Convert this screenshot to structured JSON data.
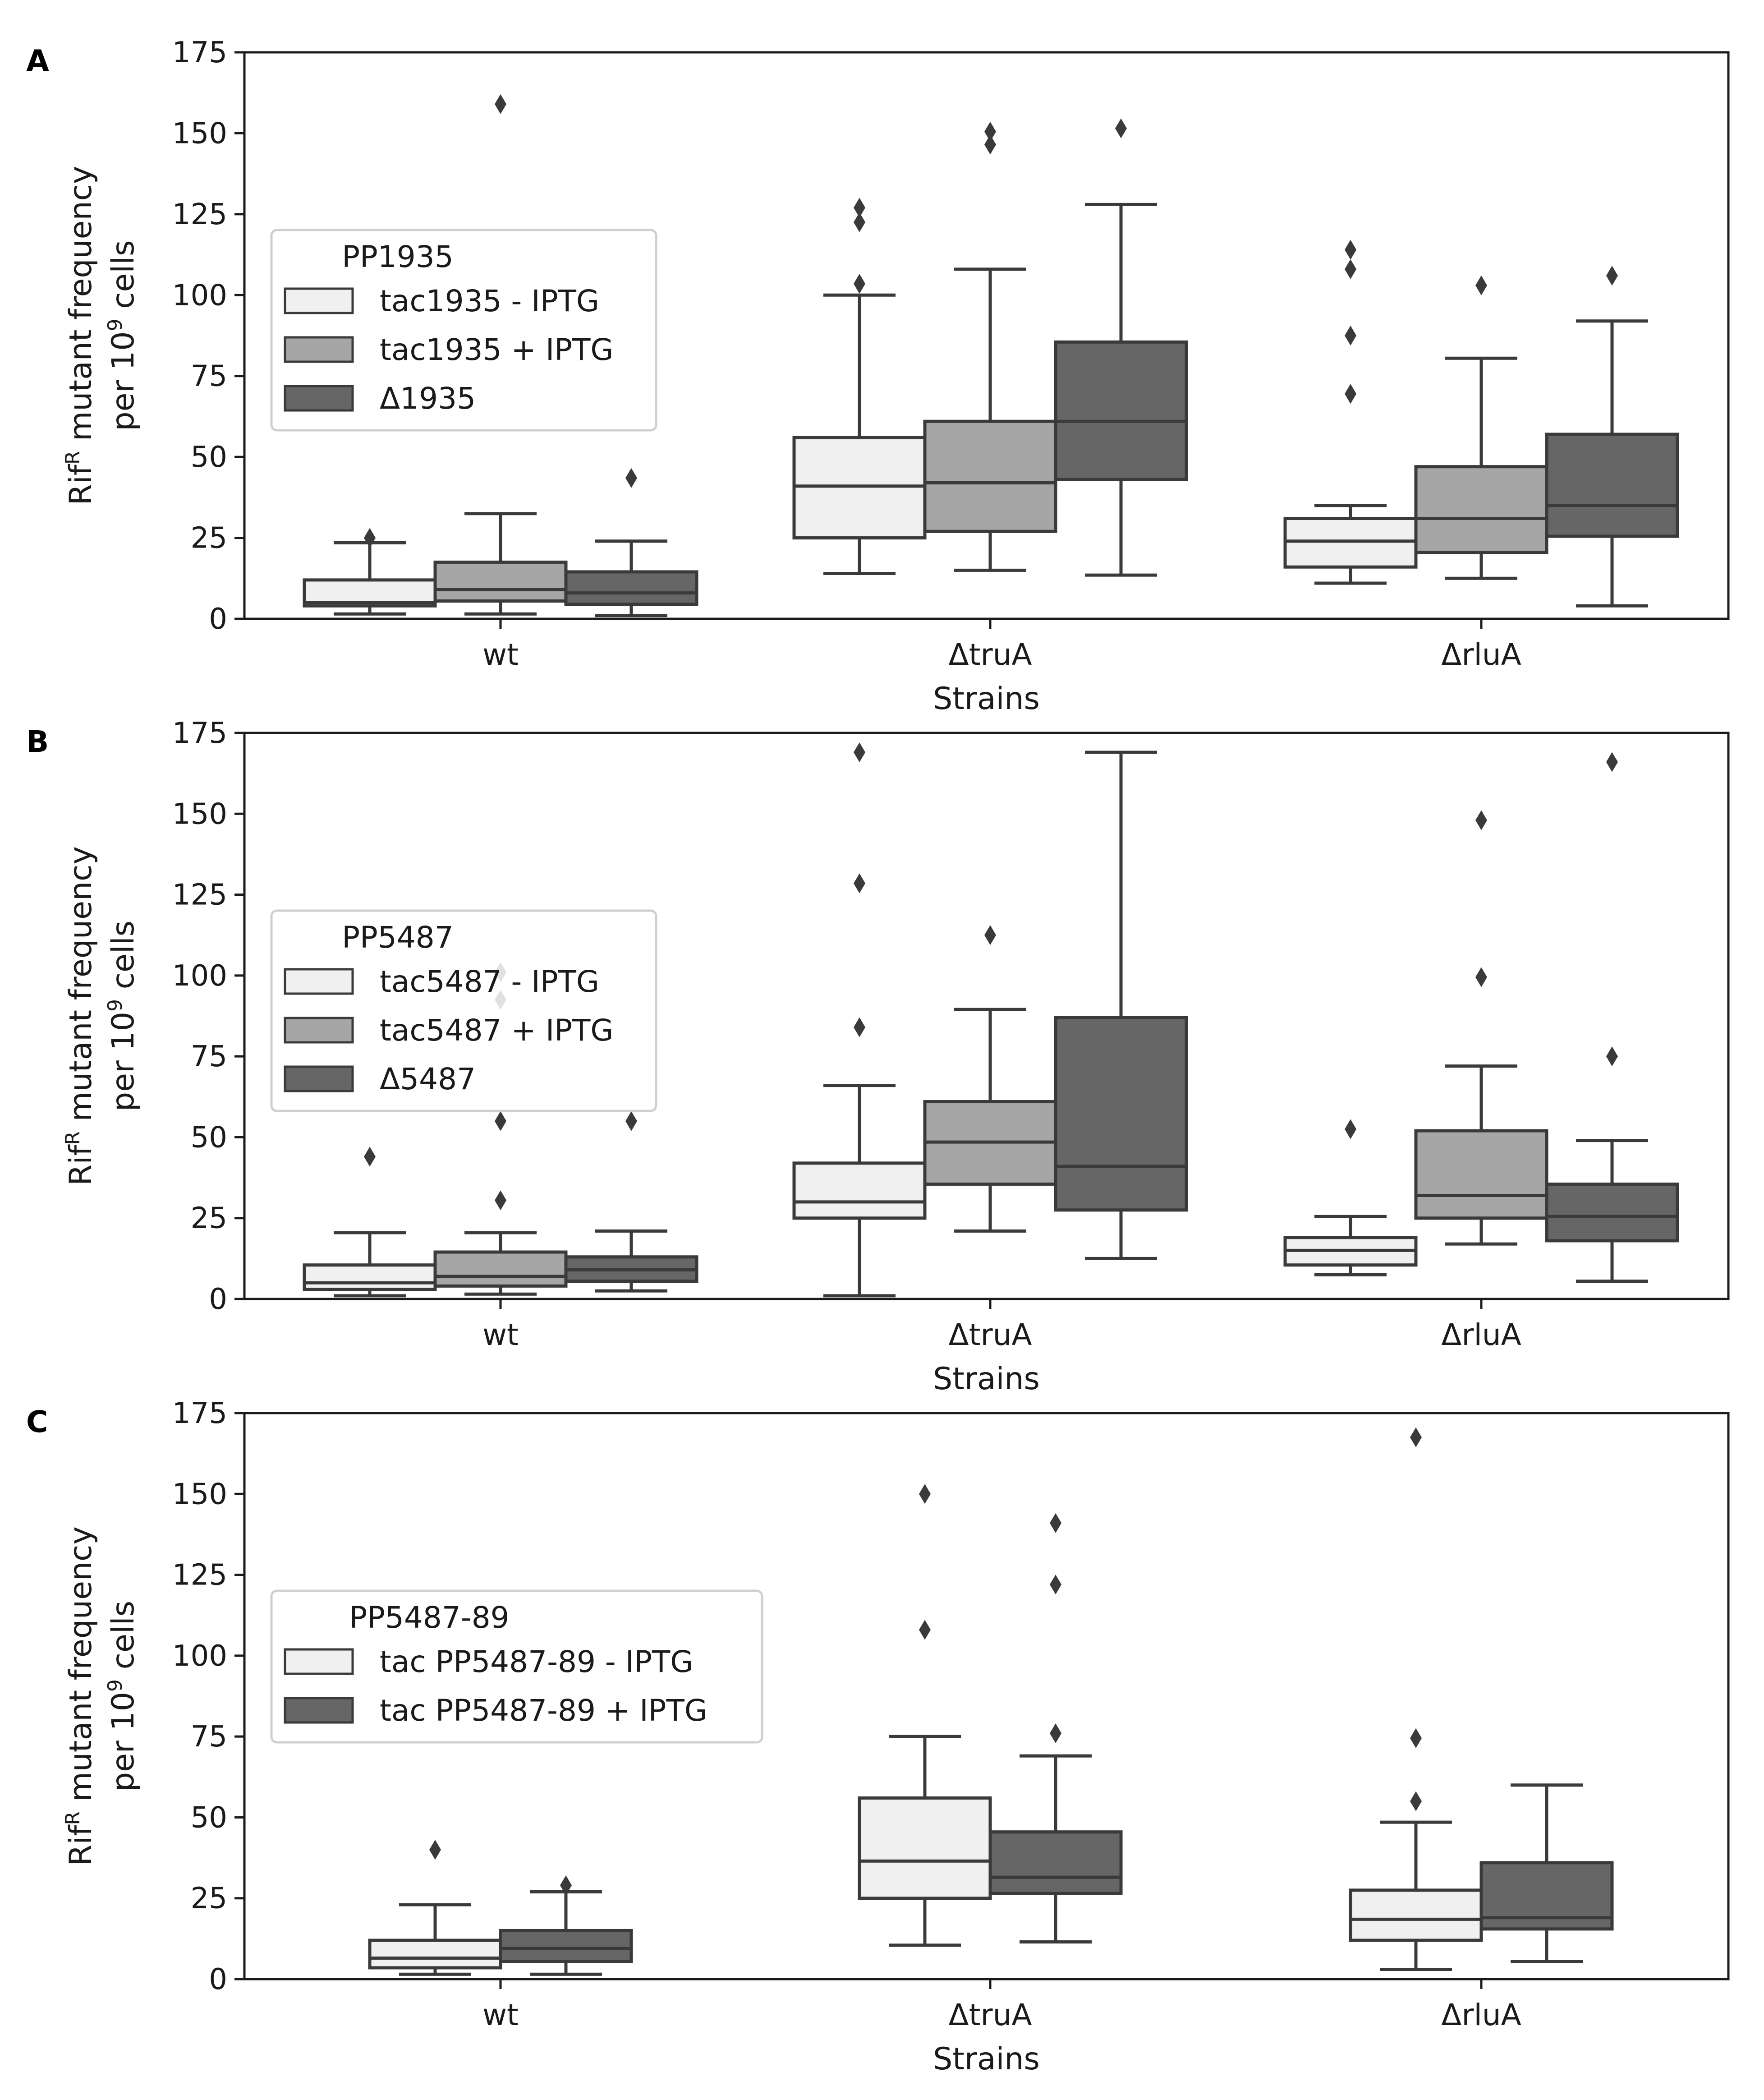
{
  "colors": {
    "light": "#f0f0f0",
    "mid": "#a6a6a6",
    "dark": "#666666",
    "line": "#3a3a3a",
    "frame": "#1a1a1a"
  },
  "chart_data": [
    {
      "type": "box",
      "panel_label": "A",
      "xlabel": "Strains",
      "ylabel": "RifR mutant frequency per 109 cells",
      "ylabel_parts": {
        "line1_pre": "Rif",
        "line1_sup": "R",
        "line1_post": " mutant frequency",
        "line2_pre": "per 10",
        "line2_sup": "9",
        "line2_post": " cells"
      },
      "ylim": [
        0,
        175
      ],
      "yticks": [
        "0",
        "25",
        "50",
        "75",
        "100",
        "125",
        "150",
        "175"
      ],
      "categories": [
        "wt",
        "ΔtruA",
        "ΔrluA"
      ],
      "legend": {
        "title": "PP1935",
        "placement": "upper-left",
        "entries": [
          "tac1935 - IPTG",
          "tac1935 + IPTG",
          "Δ1935"
        ]
      },
      "series": [
        {
          "name": "tac1935 - IPTG",
          "color": "light",
          "boxes": [
            {
              "whisker_low": 1.5,
              "q1": 4,
              "median": 5,
              "q3": 12,
              "whisker_high": 23.5,
              "outliers": [
                25
              ]
            },
            {
              "whisker_low": 14,
              "q1": 25,
              "median": 41,
              "q3": 56,
              "whisker_high": 100,
              "outliers": [
                103.5,
                122.5,
                127
              ]
            },
            {
              "whisker_low": 11,
              "q1": 16,
              "median": 24,
              "q3": 31,
              "whisker_high": 35,
              "outliers": [
                69.5,
                87.5,
                108,
                114
              ]
            }
          ]
        },
        {
          "name": "tac1935 + IPTG",
          "color": "mid",
          "boxes": [
            {
              "whisker_low": 1.5,
              "q1": 5.5,
              "median": 9,
              "q3": 17.5,
              "whisker_high": 32.5,
              "outliers": [
                159
              ]
            },
            {
              "whisker_low": 15,
              "q1": 27,
              "median": 42,
              "q3": 61,
              "whisker_high": 108,
              "outliers": [
                146.5,
                150.5
              ]
            },
            {
              "whisker_low": 12.5,
              "q1": 20.5,
              "median": 31,
              "q3": 47,
              "whisker_high": 80.5,
              "outliers": [
                103
              ]
            }
          ]
        },
        {
          "name": "Δ1935",
          "color": "dark",
          "boxes": [
            {
              "whisker_low": 1,
              "q1": 4.5,
              "median": 8,
              "q3": 14.5,
              "whisker_high": 24,
              "outliers": [
                43.5
              ]
            },
            {
              "whisker_low": 13.5,
              "q1": 43,
              "median": 61,
              "q3": 85.5,
              "whisker_high": 128,
              "outliers": [
                151.5
              ]
            },
            {
              "whisker_low": 4,
              "q1": 25.5,
              "median": 35,
              "q3": 57,
              "whisker_high": 92,
              "outliers": [
                106
              ]
            }
          ]
        }
      ]
    },
    {
      "type": "box",
      "panel_label": "B",
      "xlabel": "Strains",
      "ylabel": "RifR mutant frequency per 109 cells",
      "ylabel_parts": {
        "line1_pre": "Rif",
        "line1_sup": "R",
        "line1_post": " mutant frequency",
        "line2_pre": "per 10",
        "line2_sup": "9",
        "line2_post": " cells"
      },
      "ylim": [
        0,
        175
      ],
      "yticks": [
        "0",
        "25",
        "50",
        "75",
        "100",
        "125",
        "150",
        "175"
      ],
      "categories": [
        "wt",
        "ΔtruA",
        "ΔrluA"
      ],
      "legend": {
        "title": "PP5487",
        "placement": "upper-left",
        "entries": [
          "tac5487 - IPTG",
          "tac5487 + IPTG",
          "Δ5487"
        ]
      },
      "series": [
        {
          "name": "tac5487 - IPTG",
          "color": "light",
          "boxes": [
            {
              "whisker_low": 1,
              "q1": 3,
              "median": 5,
              "q3": 10.5,
              "whisker_high": 20.5,
              "outliers": [
                44
              ]
            },
            {
              "whisker_low": 1,
              "q1": 25,
              "median": 30,
              "q3": 42,
              "whisker_high": 66,
              "outliers": [
                84,
                128.5,
                169
              ]
            },
            {
              "whisker_low": 7.5,
              "q1": 10.5,
              "median": 15,
              "q3": 19,
              "whisker_high": 25.5,
              "outliers": [
                52.5
              ]
            }
          ]
        },
        {
          "name": "tac5487 + IPTG",
          "color": "mid",
          "boxes": [
            {
              "whisker_low": 1.5,
              "q1": 4,
              "median": 7,
              "q3": 14.5,
              "whisker_high": 20.5,
              "outliers": [
                30.5,
                55,
                92.5,
                101
              ]
            },
            {
              "whisker_low": 21,
              "q1": 35.5,
              "median": 48.5,
              "q3": 61,
              "whisker_high": 89.5,
              "outliers": [
                112.5
              ]
            },
            {
              "whisker_low": 17,
              "q1": 25,
              "median": 32,
              "q3": 52,
              "whisker_high": 72,
              "outliers": [
                99.5,
                148
              ]
            }
          ]
        },
        {
          "name": "Δ5487",
          "color": "dark",
          "boxes": [
            {
              "whisker_low": 2.5,
              "q1": 5.5,
              "median": 9,
              "q3": 13,
              "whisker_high": 21,
              "outliers": [
                55
              ]
            },
            {
              "whisker_low": 12.5,
              "q1": 27.5,
              "median": 41,
              "q3": 87,
              "whisker_high": 169,
              "outliers": []
            },
            {
              "whisker_low": 5.5,
              "q1": 18,
              "median": 25.5,
              "q3": 35.5,
              "whisker_high": 49,
              "outliers": [
                75,
                166
              ]
            }
          ]
        }
      ]
    },
    {
      "type": "box",
      "panel_label": "C",
      "xlabel": "Strains",
      "ylabel": "RifR mutant frequency per 109 cells",
      "ylabel_parts": {
        "line1_pre": "Rif",
        "line1_sup": "R",
        "line1_post": " mutant frequency",
        "line2_pre": "per 10",
        "line2_sup": "9",
        "line2_post": " cells"
      },
      "ylim": [
        0,
        175
      ],
      "yticks": [
        "0",
        "25",
        "50",
        "75",
        "100",
        "125",
        "150",
        "175"
      ],
      "categories": [
        "wt",
        "ΔtruA",
        "ΔrluA"
      ],
      "legend": {
        "title": "PP5487-89",
        "placement": "upper-left",
        "entries": [
          "tac PP5487-89 - IPTG",
          "tac PP5487-89 + IPTG"
        ]
      },
      "series": [
        {
          "name": "tac PP5487-89 - IPTG",
          "color": "light",
          "boxes": [
            {
              "whisker_low": 1.5,
              "q1": 3.5,
              "median": 6.5,
              "q3": 12,
              "whisker_high": 23,
              "outliers": [
                40
              ]
            },
            {
              "whisker_low": 10.5,
              "q1": 25,
              "median": 36.5,
              "q3": 56,
              "whisker_high": 75,
              "outliers": [
                108,
                150
              ]
            },
            {
              "whisker_low": 3,
              "q1": 12,
              "median": 18.5,
              "q3": 27.5,
              "whisker_high": 48.5,
              "outliers": [
                55,
                74.5,
                167.5
              ]
            }
          ]
        },
        {
          "name": "tac PP5487-89 + IPTG",
          "color": "dark",
          "boxes": [
            {
              "whisker_low": 1.5,
              "q1": 5.5,
              "median": 9.5,
              "q3": 15,
              "whisker_high": 27,
              "outliers": [
                29
              ]
            },
            {
              "whisker_low": 11.5,
              "q1": 26.5,
              "median": 31.5,
              "q3": 45.5,
              "whisker_high": 69,
              "outliers": [
                76,
                122,
                141
              ]
            },
            {
              "whisker_low": 5.5,
              "q1": 15.5,
              "median": 19,
              "q3": 36,
              "whisker_high": 60,
              "outliers": []
            }
          ]
        }
      ]
    }
  ]
}
